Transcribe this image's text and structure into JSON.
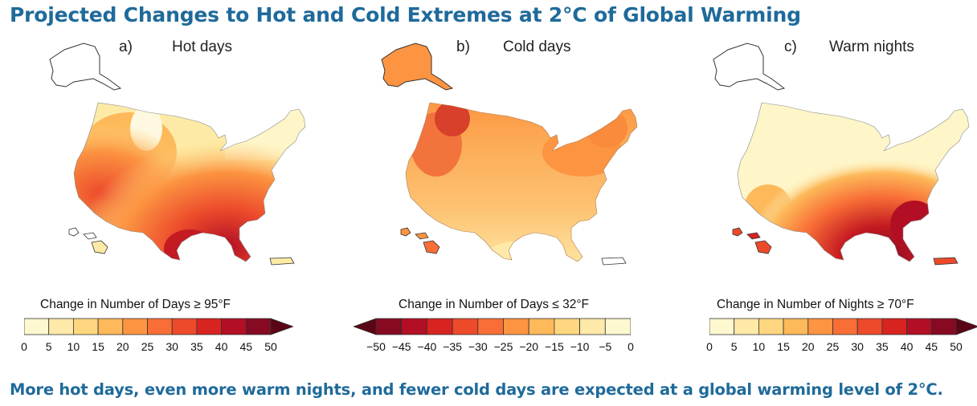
{
  "title": "Projected Changes to Hot and Cold Extremes at 2°C of Global Warming",
  "footer": "More hot days, even more warm nights, and fewer cold days are expected at a global warming level of 2°C.",
  "panels": [
    {
      "letter": "a)",
      "name": "Hot days",
      "legend_label": "Change in Number of Days ≥ 95°F",
      "ticks": [
        "0",
        "5",
        "10",
        "15",
        "20",
        "25",
        "30",
        "35",
        "40",
        "45",
        "50"
      ],
      "colors": [
        "#fef8d0",
        "#fee9a8",
        "#fed67f",
        "#fdb95a",
        "#fc9441",
        "#f86e36",
        "#ec4a2b",
        "#d82421",
        "#b20f25",
        "#860a22"
      ],
      "arrow": "right",
      "arrow_color": "#5a0617"
    },
    {
      "letter": "b)",
      "name": "Cold days",
      "legend_label": "Change in Number of Days ≤ 32°F",
      "ticks": [
        "−50",
        "−45",
        "−40",
        "−35",
        "−30",
        "−25",
        "−20",
        "−15",
        "−10",
        "−5",
        "0"
      ],
      "colors": [
        "#860a22",
        "#b20f25",
        "#d82421",
        "#ec4a2b",
        "#f86e36",
        "#fc9441",
        "#fdb95a",
        "#fed67f",
        "#fee9a8",
        "#fef8d0"
      ],
      "arrow": "left",
      "arrow_color": "#5a0617"
    },
    {
      "letter": "c)",
      "name": "Warm nights",
      "legend_label": "Change in Number of Nights ≥ 70°F",
      "ticks": [
        "0",
        "5",
        "10",
        "15",
        "20",
        "25",
        "30",
        "35",
        "40",
        "45",
        "50"
      ],
      "colors": [
        "#fef8d0",
        "#fee9a8",
        "#fed67f",
        "#fdb95a",
        "#fc9441",
        "#f86e36",
        "#ec4a2b",
        "#d82421",
        "#b20f25",
        "#860a22"
      ],
      "arrow": "right",
      "arrow_color": "#5a0617"
    }
  ]
}
